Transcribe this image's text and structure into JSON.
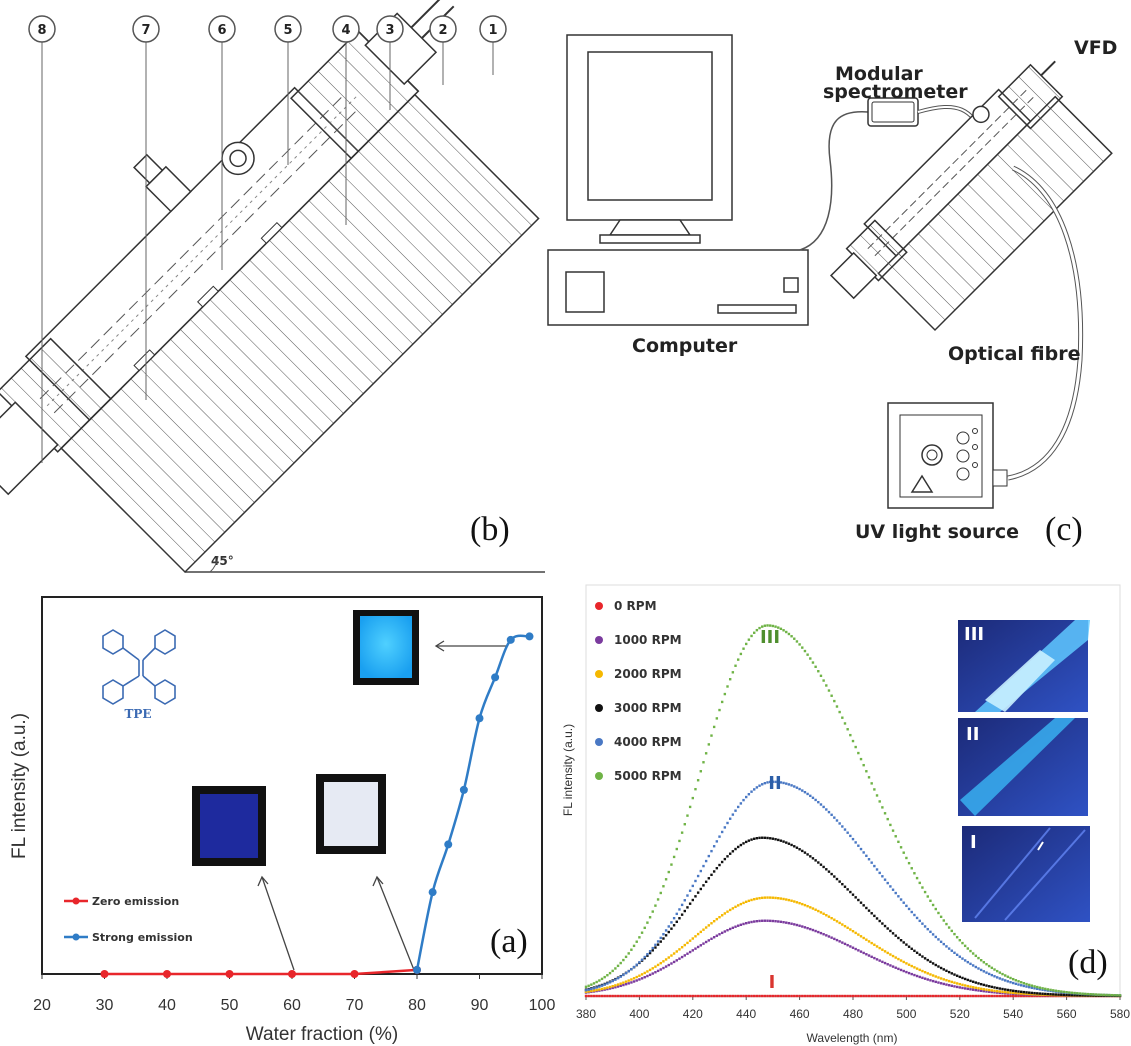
{
  "panel_b": {
    "letter": "(b)",
    "callouts": [
      "8",
      "7",
      "6",
      "5",
      "4",
      "3",
      "2",
      "1"
    ],
    "angle_label": "45°"
  },
  "panel_c": {
    "letter": "(c)",
    "labels": {
      "spectrometer": [
        "Modular",
        "spectrometer"
      ],
      "vfd": "VFD",
      "computer": "Computer",
      "fibre": "Optical fibre",
      "uv": "UV light source"
    }
  },
  "chart_data": [
    {
      "type": "line",
      "panel": "(a)",
      "ylabel": "FL intensity (a.u.)",
      "xlabel": "Water fraction (%)",
      "xlim": [
        20,
        100
      ],
      "xticks": [
        20,
        30,
        40,
        50,
        60,
        70,
        80,
        90,
        100
      ],
      "ylim": [
        0,
        1
      ],
      "molecule_label": "TPE",
      "series": [
        {
          "name": "Zero emission",
          "color": "#e8262b",
          "x": [
            30,
            40,
            50,
            60,
            70,
            80
          ],
          "y": [
            0.0,
            0.0,
            0.0,
            0.0,
            0.0,
            0.012
          ]
        },
        {
          "name": "Strong emission",
          "color": "#2f7cc6",
          "x": [
            80,
            82.5,
            85,
            87.5,
            90,
            92.5,
            95,
            98
          ],
          "y": [
            0.012,
            0.24,
            0.38,
            0.54,
            0.75,
            0.87,
            0.98,
            0.99
          ]
        }
      ]
    },
    {
      "type": "scatter",
      "panel": "(d)",
      "ylabel": "FL intensity (a.u.)",
      "xlabel": "Wavelength (nm)",
      "xlim": [
        380,
        580
      ],
      "xticks": [
        380,
        400,
        420,
        440,
        460,
        480,
        500,
        520,
        540,
        560,
        580
      ],
      "ylim": [
        0,
        1
      ],
      "series": [
        {
          "name": "0 RPM",
          "color": "#e8262b",
          "peak_nm": 447,
          "peak": 0.0,
          "sigma_left": 28,
          "sigma_right": 36
        },
        {
          "name": "1000 RPM",
          "color": "#7b3b9e",
          "peak_nm": 447,
          "peak": 0.195,
          "sigma_left": 27,
          "sigma_right": 35
        },
        {
          "name": "2000 RPM",
          "color": "#f5b800",
          "peak_nm": 448,
          "peak": 0.255,
          "sigma_left": 27,
          "sigma_right": 35
        },
        {
          "name": "3000 RPM",
          "color": "#111111",
          "peak_nm": 446,
          "peak": 0.41,
          "sigma_left": 26,
          "sigma_right": 36
        },
        {
          "name": "4000 RPM",
          "color": "#4a78c4",
          "peak_nm": 450,
          "peak": 0.555,
          "sigma_left": 26,
          "sigma_right": 38
        },
        {
          "name": "5000 RPM",
          "color": "#6fb346",
          "peak_nm": 448,
          "peak": 0.96,
          "sigma_left": 25,
          "sigma_right": 37
        }
      ],
      "annotations": [
        {
          "text": "III",
          "color": "#4f8f2e"
        },
        {
          "text": "II",
          "color": "#2d5fa8"
        },
        {
          "text": "I",
          "color": "#d9352f"
        }
      ],
      "inset_labels": [
        "III",
        "II",
        "I"
      ]
    }
  ]
}
